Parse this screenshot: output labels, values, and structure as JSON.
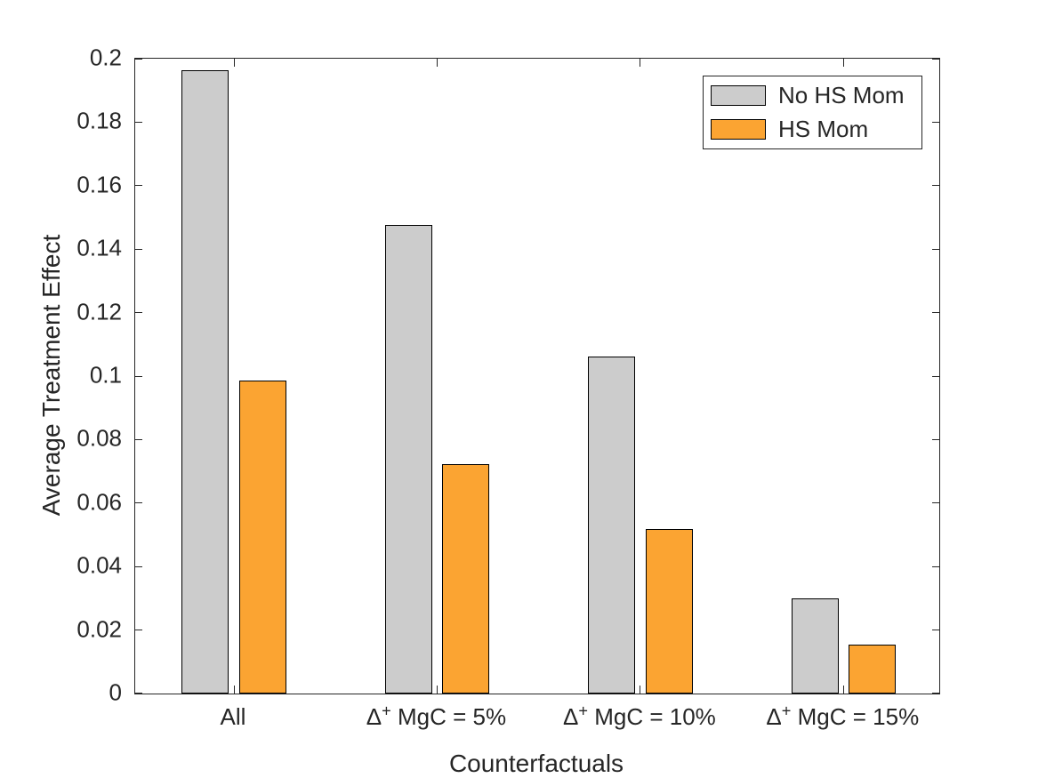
{
  "figure": {
    "background": "#ffffff",
    "axis_color": "#262626",
    "text_color": "#262626",
    "bar_edge_color": "#000000"
  },
  "chart_data": {
    "type": "bar",
    "title": "",
    "xlabel": "Counterfactuals",
    "ylabel": "Average Treatment Effect",
    "categories": [
      "All",
      "Δ^+ MgC = 5%",
      "Δ^+ MgC = 10%",
      "Δ^+ MgC = 15%"
    ],
    "series": [
      {
        "name": "No HS Mom",
        "color": "#cccccc",
        "values": [
          0.1963,
          0.1476,
          0.1062,
          0.03
        ]
      },
      {
        "name": "HS Mom",
        "color": "#fba432",
        "values": [
          0.0985,
          0.0723,
          0.0519,
          0.0153
        ]
      }
    ],
    "ylim": [
      0,
      0.2
    ],
    "yticks": [
      0,
      0.02,
      0.04,
      0.06,
      0.08,
      0.1,
      0.12,
      0.14,
      0.16,
      0.18,
      0.2
    ],
    "ytick_labels": [
      "0",
      "0.02",
      "0.04",
      "0.06",
      "0.08",
      "0.1",
      "0.12",
      "0.14",
      "0.16",
      "0.18",
      "0.2"
    ],
    "grid": false,
    "legend_position": "top-right"
  }
}
